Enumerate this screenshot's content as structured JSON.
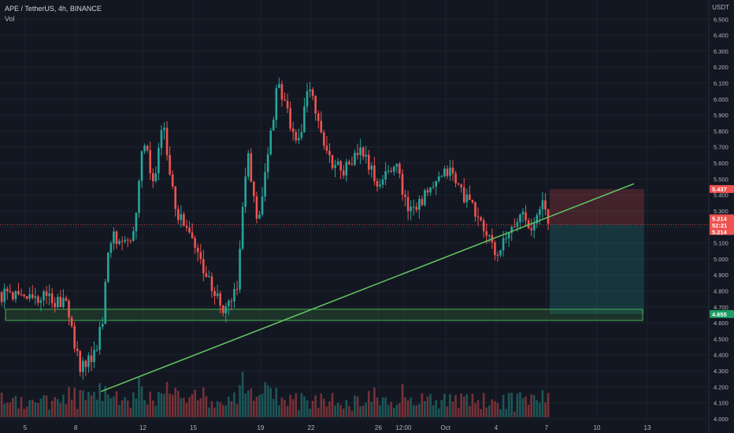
{
  "header": {
    "symbol_line": "APE / TetherUS, 4h, BINANCE",
    "volume_label": "Vol",
    "unit": "USDT"
  },
  "colors": {
    "background": "#131722",
    "up": "#26a69a",
    "down": "#ef5350",
    "trendline": "#5fbe5f",
    "support_fill": "rgba(76,175,80,0.18)",
    "support_stroke": "#4caf50",
    "stop_zone": "rgba(239,83,80,0.22)",
    "target_zone": "rgba(38,166,154,0.22)",
    "axis_text": "#b2b5be"
  },
  "chart_data": {
    "type": "candlestick",
    "y_axis": {
      "min": 3.96,
      "max": 6.6,
      "ticks": [
        "6.500",
        "6.400",
        "6.300",
        "6.200",
        "6.100",
        "6.000",
        "5.900",
        "5.800",
        "5.700",
        "5.600",
        "5.500",
        "5.400",
        "5.300",
        "5.200",
        "5.100",
        "5.000",
        "4.900",
        "4.800",
        "4.700",
        "4.600",
        "4.500",
        "4.400",
        "4.300",
        "4.200",
        "4.100",
        "4.000"
      ]
    },
    "x_axis": {
      "labels": [
        "5",
        "8",
        "12",
        "15",
        "19",
        "22",
        "26",
        "12:00",
        "Oct",
        "4",
        "7",
        "10",
        "13"
      ],
      "positions": [
        0.0,
        3.0,
        7.0,
        10.0,
        14.0,
        17.0,
        21.0,
        22.5,
        25.0,
        28.0,
        31.0,
        34.0,
        37.0
      ]
    },
    "price_markers": {
      "stop": "5.437",
      "current": "5.214",
      "countdown": "52:21",
      "current_repeat": "5.214",
      "support": "4.655"
    },
    "anchors": [
      {
        "t": -3.0,
        "p": 4.78
      },
      {
        "t": 0.0,
        "p": 4.77
      },
      {
        "t": 2.5,
        "p": 4.73
      },
      {
        "t": 3.2,
        "p": 4.33
      },
      {
        "t": 4.0,
        "p": 4.36
      },
      {
        "t": 4.6,
        "p": 4.62
      },
      {
        "t": 5.0,
        "p": 5.13
      },
      {
        "t": 6.5,
        "p": 5.15
      },
      {
        "t": 7.0,
        "p": 5.78
      },
      {
        "t": 7.6,
        "p": 5.46
      },
      {
        "t": 8.2,
        "p": 5.84
      },
      {
        "t": 9.0,
        "p": 5.3
      },
      {
        "t": 10.0,
        "p": 5.1
      },
      {
        "t": 11.0,
        "p": 4.85
      },
      {
        "t": 11.8,
        "p": 4.66
      },
      {
        "t": 12.6,
        "p": 4.82
      },
      {
        "t": 13.2,
        "p": 5.68
      },
      {
        "t": 13.8,
        "p": 5.18
      },
      {
        "t": 14.3,
        "p": 5.57
      },
      {
        "t": 15.0,
        "p": 6.08
      },
      {
        "t": 15.6,
        "p": 5.92
      },
      {
        "t": 16.2,
        "p": 5.68
      },
      {
        "t": 16.8,
        "p": 6.08
      },
      {
        "t": 17.4,
        "p": 5.88
      },
      {
        "t": 18.0,
        "p": 5.62
      },
      {
        "t": 19.0,
        "p": 5.56
      },
      {
        "t": 20.0,
        "p": 5.68
      },
      {
        "t": 21.0,
        "p": 5.45
      },
      {
        "t": 22.0,
        "p": 5.62
      },
      {
        "t": 22.7,
        "p": 5.32
      },
      {
        "t": 23.5,
        "p": 5.36
      },
      {
        "t": 24.5,
        "p": 5.47
      },
      {
        "t": 25.2,
        "p": 5.56
      },
      {
        "t": 26.0,
        "p": 5.41
      },
      {
        "t": 27.0,
        "p": 5.25
      },
      {
        "t": 28.0,
        "p": 5.02
      },
      {
        "t": 28.8,
        "p": 5.15
      },
      {
        "t": 29.6,
        "p": 5.3
      },
      {
        "t": 30.2,
        "p": 5.18
      },
      {
        "t": 30.8,
        "p": 5.36
      },
      {
        "t": 31.2,
        "p": 5.214
      }
    ],
    "trendline": {
      "t1": 4.5,
      "p1": 4.17,
      "t2": 36.2,
      "p2": 5.47
    },
    "support_zone": {
      "t1": -3.0,
      "t2": 37.0,
      "low": 4.615,
      "high": 4.685
    },
    "short_position": {
      "t1": 31.1,
      "t2": 37.0,
      "entry": 5.214,
      "stop": 5.437,
      "target": 4.655
    }
  }
}
